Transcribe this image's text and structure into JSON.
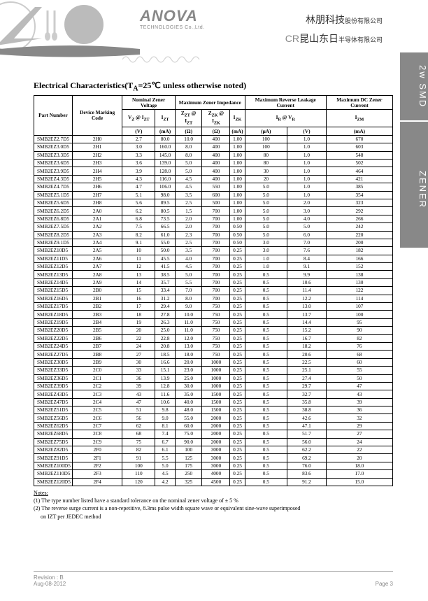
{
  "header": {
    "logo_main": "ANOVA",
    "logo_sub": "TECHNOLOGIES Co.,Ltd.",
    "cn1_main": "林朋科技",
    "cn1_small": "股份有限公司",
    "cn2_prefix": "CR",
    "cn2_main": "昆山东日",
    "cn2_small": "半导体有限公司"
  },
  "tabs": {
    "t1": "2w SMD",
    "t2": "ZENER"
  },
  "title": "Electrical Characteristics(T",
  "title_sub": "A",
  "title_rest": "=25℃ unless otherwise noted)",
  "headers": {
    "pn": "Part Number",
    "dmc": "Device Marking Code",
    "nzv": "Nominal Zener Voltage",
    "mzi": "Maximum Zener Impedance",
    "mrlc": "Maximum Reverse Leakage Current",
    "mdzc": "Maximum DC Zener Current",
    "vz": "V",
    "vz_sub": "Z",
    "at": " @ I",
    "izt_sub": "ZT",
    "izt": "I",
    "zzt": "Z",
    "zzk": "Z",
    "zzk_sub": "ZK",
    "izk": "I",
    "izk_sub": "ZK",
    "ir": "I",
    "ir_sub": "R",
    "vr": "V",
    "vr_sub": "R",
    "izm": "I",
    "izm_sub": "ZM",
    "u_v": "(V)",
    "u_ma": "(mA)",
    "u_ohm": "(Ω)",
    "u_ua": "(μA)"
  },
  "rows": [
    [
      "SMB2EZ2.7D5",
      "2H0",
      "2.7",
      "80.0",
      "10.0",
      "400",
      "1.00",
      "100",
      "1.0",
      "670"
    ],
    [
      "SMB2EZ3.0D5",
      "2H1",
      "3.0",
      "160.0",
      "8.0",
      "400",
      "1.00",
      "100",
      "1.0",
      "603"
    ],
    [
      "SMB2EZ3.3D5",
      "2H2",
      "3.3",
      "145.0",
      "8.0",
      "400",
      "1.00",
      "80",
      "1.0",
      "548"
    ],
    [
      "SMB2EZ3.6D5",
      "2H3",
      "3.6",
      "139.0",
      "5.0",
      "400",
      "1.00",
      "80",
      "1.0",
      "502"
    ],
    [
      "SMB2EZ3.9D5",
      "2H4",
      "3.9",
      "128.0",
      "5.0",
      "400",
      "1.00",
      "30",
      "1.0",
      "464"
    ],
    [
      "SMB2EZ4.3D5",
      "2H5",
      "4.3",
      "116.0",
      "4.5",
      "400",
      "1.00",
      "20",
      "1.0",
      "421"
    ],
    [
      "SMB2EZ4.7D5",
      "2H6",
      "4.7",
      "106.0",
      "4.5",
      "550",
      "1.00",
      "5.0",
      "1.0",
      "385"
    ],
    [
      "SMB2EZ5.1D5",
      "2H7",
      "5.1",
      "98.0",
      "3.5",
      "600",
      "1.00",
      "5.0",
      "1.0",
      "354"
    ],
    [
      "SMB2EZ5.6D5",
      "2H8",
      "5.6",
      "89.5",
      "2.5",
      "500",
      "1.00",
      "5.0",
      "2.0",
      "323"
    ],
    [
      "SMB2EZ6.2D5",
      "2A0",
      "6.2",
      "80.5",
      "1.5",
      "700",
      "1.00",
      "5.0",
      "3.0",
      "292"
    ],
    [
      "SMB2EZ6.8D5",
      "2A1",
      "6.8",
      "73.5",
      "2.0",
      "700",
      "1.00",
      "5.0",
      "4.0",
      "266"
    ],
    [
      "SMB2EZ7.5D5",
      "2A2",
      "7.5",
      "66.5",
      "2.0",
      "700",
      "0.50",
      "5.0",
      "5.0",
      "242"
    ],
    [
      "SMB2EZ8.2D5",
      "2A3",
      "8.2",
      "61.0",
      "2.3",
      "700",
      "0.50",
      "5.0",
      "6.0",
      "220"
    ],
    [
      "SMB2EZ9.1D5",
      "2A4",
      "9.1",
      "55.0",
      "2.5",
      "700",
      "0.50",
      "3.0",
      "7.0",
      "200"
    ],
    [
      "SMB2EZ10D5",
      "2A5",
      "10",
      "50.0",
      "3.5",
      "700",
      "0.25",
      "3.0",
      "7.6",
      "182"
    ],
    [
      "SMB2EZ11D5",
      "2A6",
      "11",
      "45.5",
      "4.0",
      "700",
      "0.25",
      "1.0",
      "8.4",
      "166"
    ],
    [
      "SMB2EZ12D5",
      "2A7",
      "12",
      "41.5",
      "4.5",
      "700",
      "0.25",
      "1.0",
      "9.1",
      "152"
    ],
    [
      "SMB2EZ13D5",
      "2A8",
      "13",
      "38.5",
      "5.0",
      "700",
      "0.25",
      "0.5",
      "9.9",
      "138"
    ],
    [
      "SMB2EZ14D5",
      "2A9",
      "14",
      "35.7",
      "5.5",
      "700",
      "0.25",
      "0.5",
      "10.6",
      "130"
    ],
    [
      "SMB2EZ15D5",
      "2B0",
      "15",
      "33.4",
      "7.0",
      "700",
      "0.25",
      "0.5",
      "11.4",
      "122"
    ],
    [
      "SMB2EZ16D5",
      "2B1",
      "16",
      "31.2",
      "8.0",
      "700",
      "0.25",
      "0.5",
      "12.2",
      "114"
    ],
    [
      "SMB2EZ17D5",
      "2B2",
      "17",
      "29.4",
      "9.0",
      "750",
      "0.25",
      "0.5",
      "13.0",
      "107"
    ],
    [
      "SMB2EZ18D5",
      "2B3",
      "18",
      "27.8",
      "10.0",
      "750",
      "0.25",
      "0.5",
      "13.7",
      "100"
    ],
    [
      "SMB2EZ19D5",
      "2B4",
      "19",
      "26.3",
      "11.0",
      "750",
      "0.25",
      "0.5",
      "14.4",
      "95"
    ],
    [
      "SMB2EZ20D5",
      "2B5",
      "20",
      "25.0",
      "11.0",
      "750",
      "0.25",
      "0.5",
      "15.2",
      "90"
    ],
    [
      "SMB2EZ22D5",
      "2B6",
      "22",
      "22.8",
      "12.0",
      "750",
      "0.25",
      "0.5",
      "16.7",
      "82"
    ],
    [
      "SMB2EZ24D5",
      "2B7",
      "24",
      "20.8",
      "13.0",
      "750",
      "0.25",
      "0.5",
      "18.2",
      "76"
    ],
    [
      "SMB2EZ27D5",
      "2B8",
      "27",
      "18.5",
      "18.0",
      "750",
      "0.25",
      "0.5",
      "20.6",
      "68"
    ],
    [
      "SMB2EZ30D5",
      "2B9",
      "30",
      "16.6",
      "20.0",
      "1000",
      "0.25",
      "0.5",
      "22.5",
      "60"
    ],
    [
      "SMB2EZ33D5",
      "2C0",
      "33",
      "15.1",
      "23.0",
      "1000",
      "0.25",
      "0.5",
      "25.1",
      "55"
    ],
    [
      "SMB2EZ36D5",
      "2C1",
      "36",
      "13.9",
      "25.0",
      "1000",
      "0.25",
      "0.5",
      "27.4",
      "50"
    ],
    [
      "SMB2EZ39D5",
      "2C2",
      "39",
      "12.8",
      "30.0",
      "1000",
      "0.25",
      "0.5",
      "29.7",
      "47"
    ],
    [
      "SMB2EZ43D5",
      "2C3",
      "43",
      "11.6",
      "35.0",
      "1500",
      "0.25",
      "0.5",
      "32.7",
      "43"
    ],
    [
      "SMB2EZ47D5",
      "2C4",
      "47",
      "10.6",
      "40.0",
      "1500",
      "0.25",
      "0.5",
      "35.8",
      "39"
    ],
    [
      "SMB2EZ51D5",
      "2C5",
      "51",
      "9.8",
      "48.0",
      "1500",
      "0.25",
      "0.5",
      "38.8",
      "36"
    ],
    [
      "SMB2EZ56D5",
      "2C6",
      "56",
      "9.0",
      "55.0",
      "2000",
      "0.25",
      "0.5",
      "42.6",
      "32"
    ],
    [
      "SMB2EZ62D5",
      "2C7",
      "62",
      "8.1",
      "60.0",
      "2000",
      "0.25",
      "0.5",
      "47.1",
      "29"
    ],
    [
      "SMB2EZ68D5",
      "2C8",
      "68",
      "7.4",
      "75.0",
      "2000",
      "0.25",
      "0.5",
      "51.7",
      "27"
    ],
    [
      "SMB2EZ75D5",
      "2C9",
      "75",
      "6.7",
      "90.0",
      "2000",
      "0.25",
      "0.5",
      "56.0",
      "24"
    ],
    [
      "SMB2EZ82D5",
      "2F0",
      "82",
      "6.1",
      "100",
      "3000",
      "0.25",
      "0.5",
      "62.2",
      "22"
    ],
    [
      "SMB2EZ91D5",
      "2F1",
      "91",
      "5.5",
      "125",
      "3000",
      "0.25",
      "0.5",
      "69.2",
      "20"
    ],
    [
      "SMB2EZ100D5",
      "2F2",
      "100",
      "5.0",
      "175",
      "3000",
      "0.25",
      "0.5",
      "76.0",
      "18.0"
    ],
    [
      "SMB2EZ110D5",
      "2F3",
      "110",
      "4.5",
      "250",
      "4000",
      "0.25",
      "0.5",
      "83.6",
      "17.0"
    ],
    [
      "SMB2EZ120D5",
      "2F4",
      "120",
      "4.2",
      "325",
      "4500",
      "0.25",
      "0.5",
      "91.2",
      "15.0"
    ]
  ],
  "notes": {
    "title": "Notes:",
    "n1": "(1) The type number listed have a standard tolerance on the nominal zener voltage of ± 5 %",
    "n2a": "(2) The reverse surge current is a non-repetitive, 8.3ms pulse width square wave or equivalent sine-wave superimposed",
    "n2b": "     on IZT per JEDEC method"
  },
  "footer": {
    "rev": "Revision : B",
    "date": "Aug-08-2012",
    "page": "Page 3"
  }
}
